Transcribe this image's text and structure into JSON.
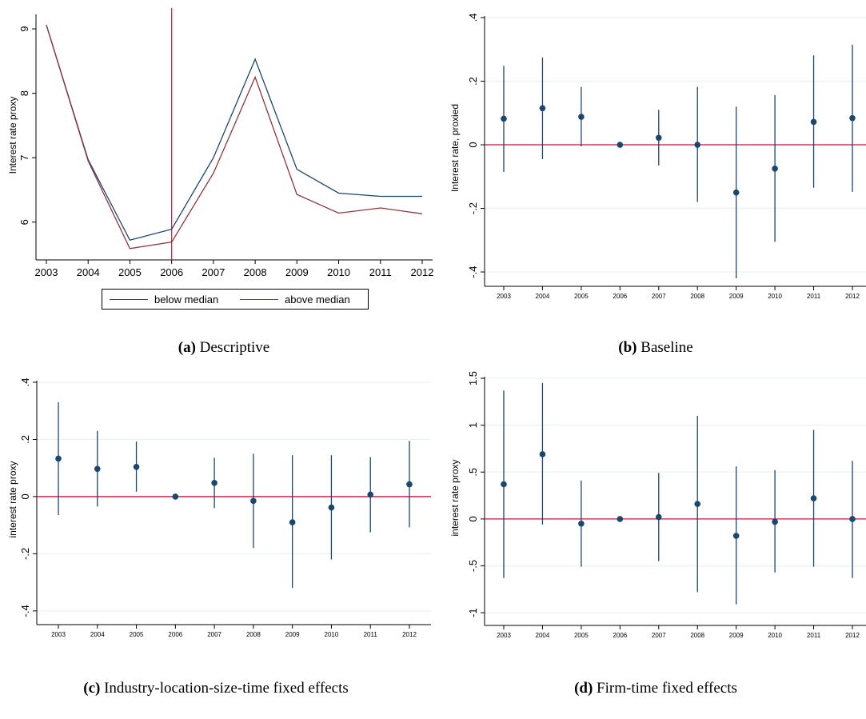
{
  "colors": {
    "navy": "#1a476f",
    "maroon": "#90353b",
    "grid": "#eaf2f3",
    "zero_line": "#c4163f",
    "axis": "#000000"
  },
  "captions": [
    {
      "letter": "(a)",
      "text": " Descriptive"
    },
    {
      "letter": "(b)",
      "text": " Baseline"
    },
    {
      "letter": "(c)",
      "text": " Industry-location-size-time fixed effects"
    },
    {
      "letter": "(d)",
      "text": " Firm-time fixed effects"
    }
  ],
  "chart_data": [
    {
      "type": "line",
      "ylabel": "Interest rate proxy",
      "xlabel": "",
      "x": [
        2003,
        2004,
        2005,
        2006,
        2007,
        2008,
        2009,
        2010,
        2011,
        2012
      ],
      "ylim": [
        5.5,
        9.2
      ],
      "yticks": [
        6,
        7,
        8,
        9
      ],
      "ytick_labels": [
        "6",
        "7",
        "8",
        "9"
      ],
      "xtick_labels": [
        "2003",
        "2004",
        "2005",
        "2006",
        "2007",
        "2008",
        "2009",
        "2010",
        "2011",
        "2012"
      ],
      "vline": 2006,
      "series": [
        {
          "name": "below median",
          "color": "#1a476f",
          "values": [
            9.06,
            6.97,
            5.72,
            5.89,
            7.0,
            8.53,
            6.82,
            6.45,
            6.4,
            6.4
          ]
        },
        {
          "name": "above median",
          "color": "#90353b",
          "values": [
            9.06,
            6.95,
            5.59,
            5.69,
            6.76,
            8.25,
            6.43,
            6.14,
            6.22,
            6.13
          ]
        }
      ],
      "legend_position": "bottom"
    },
    {
      "type": "scatter",
      "ylabel": "Interest rate, proxied",
      "xlabel": "",
      "x": [
        2003,
        2004,
        2005,
        2006,
        2007,
        2008,
        2009,
        2010,
        2011,
        2012
      ],
      "ylim": [
        -0.42,
        0.4
      ],
      "yticks": [
        -0.4,
        -0.2,
        0,
        0.2,
        0.4
      ],
      "ytick_labels": [
        "-.4",
        "-.2",
        "0",
        ".2",
        ".4"
      ],
      "xtick_labels": [
        "2003",
        "2004",
        "2005",
        "2006",
        "2007",
        "2008",
        "2009",
        "2010",
        "2011",
        "2012"
      ],
      "estimates": [
        0.082,
        0.115,
        0.088,
        0.0,
        0.022,
        0.0,
        -0.15,
        -0.075,
        0.072,
        0.084
      ],
      "ci_low": [
        -0.085,
        -0.045,
        -0.005,
        0.0,
        -0.065,
        -0.18,
        -0.42,
        -0.305,
        -0.135,
        -0.148
      ],
      "ci_high": [
        0.248,
        0.275,
        0.182,
        0.0,
        0.11,
        0.182,
        0.12,
        0.156,
        0.281,
        0.315
      ],
      "grid": true
    },
    {
      "type": "scatter",
      "ylabel": "interest rate proxy",
      "xlabel": "",
      "x": [
        2003,
        2004,
        2005,
        2006,
        2007,
        2008,
        2009,
        2010,
        2011,
        2012
      ],
      "ylim": [
        -0.42,
        0.4
      ],
      "yticks": [
        -0.4,
        -0.2,
        0,
        0.2,
        0.4
      ],
      "ytick_labels": [
        "-.4",
        "-.2",
        "0",
        ".2",
        ".4"
      ],
      "xtick_labels": [
        "2003",
        "2004",
        "2005",
        "2006",
        "2007",
        "2008",
        "2009",
        "2010",
        "2011",
        "2012"
      ],
      "estimates": [
        0.133,
        0.097,
        0.104,
        0.0,
        0.048,
        -0.015,
        -0.09,
        -0.038,
        0.007,
        0.043
      ],
      "ci_low": [
        -0.065,
        -0.035,
        0.017,
        0.0,
        -0.04,
        -0.18,
        -0.32,
        -0.22,
        -0.125,
        -0.108
      ],
      "ci_high": [
        0.33,
        0.23,
        0.193,
        0.0,
        0.136,
        0.15,
        0.145,
        0.145,
        0.138,
        0.195
      ],
      "grid": true
    },
    {
      "type": "scatter",
      "ylabel": "interest rate proxy",
      "xlabel": "",
      "x": [
        2003,
        2004,
        2005,
        2006,
        2007,
        2008,
        2009,
        2010,
        2011,
        2012
      ],
      "ylim": [
        -1.05,
        1.5
      ],
      "yticks": [
        -1,
        -0.5,
        0,
        0.5,
        1,
        1.5
      ],
      "ytick_labels": [
        "-1",
        "-.5",
        "0",
        ".5",
        "1",
        "1.5"
      ],
      "xtick_labels": [
        "2003",
        "2004",
        "2005",
        "2006",
        "2007",
        "2008",
        "2009",
        "2010",
        "2011",
        "2012"
      ],
      "estimates": [
        0.37,
        0.69,
        -0.05,
        0.0,
        0.02,
        0.16,
        -0.18,
        -0.03,
        0.22,
        0.0
      ],
      "ci_low": [
        -0.63,
        -0.06,
        -0.51,
        0.0,
        -0.45,
        -0.78,
        -0.91,
        -0.57,
        -0.51,
        -0.63
      ],
      "ci_high": [
        1.37,
        1.45,
        0.41,
        0.0,
        0.49,
        1.1,
        0.56,
        0.52,
        0.95,
        0.62
      ],
      "grid": true
    }
  ]
}
